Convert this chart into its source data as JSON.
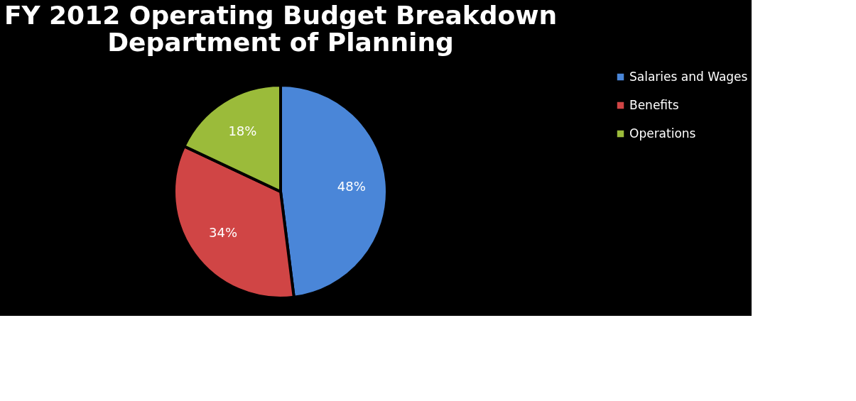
{
  "chart_data": {
    "type": "pie",
    "title": "FY 2012 Operating Budget Breakdown\nDepartment of Planning",
    "categories": [
      "Salaries and Wages",
      "Benefits",
      "Operations"
    ],
    "values": [
      48,
      34,
      18
    ],
    "colors": [
      "#4a86d8",
      "#d04545",
      "#9bbb3a"
    ],
    "value_labels": [
      "48%",
      "34%",
      "18%"
    ],
    "legend": "right"
  }
}
